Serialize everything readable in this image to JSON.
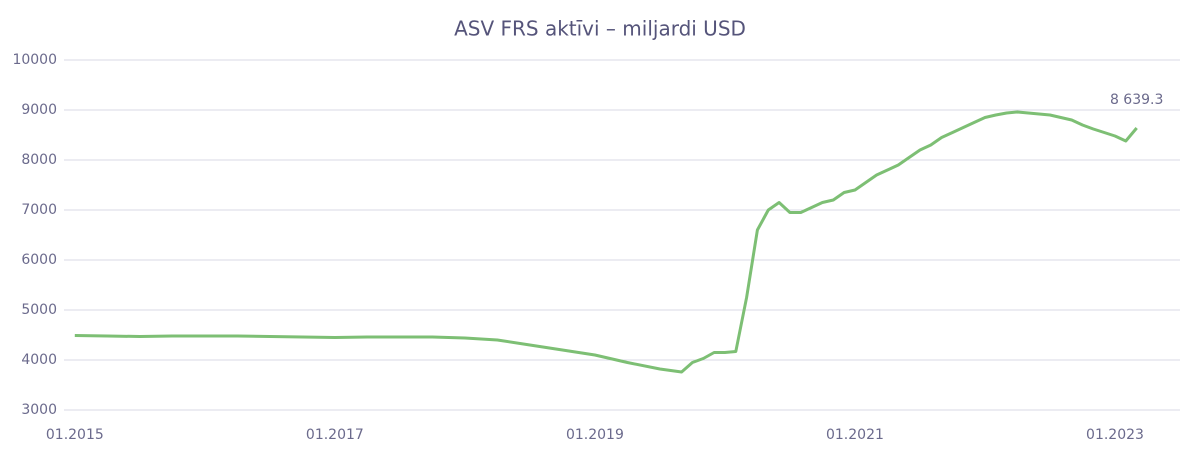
{
  "chart_data": {
    "type": "line",
    "title": "ASV FRS aktīvi – miljardi USD",
    "x": [
      "01.2015",
      "04.2015",
      "07.2015",
      "10.2015",
      "01.2016",
      "04.2016",
      "07.2016",
      "10.2016",
      "01.2017",
      "04.2017",
      "07.2017",
      "10.2017",
      "01.2018",
      "04.2018",
      "07.2018",
      "10.2018",
      "01.2019",
      "04.2019",
      "07.2019",
      "09.2019",
      "10.2019",
      "11.2019",
      "12.2019",
      "01.2020",
      "02.2020",
      "03.2020",
      "04.2020",
      "05.2020",
      "06.2020",
      "07.2020",
      "08.2020",
      "09.2020",
      "10.2020",
      "11.2020",
      "12.2020",
      "01.2021",
      "02.2021",
      "03.2021",
      "04.2021",
      "05.2021",
      "06.2021",
      "07.2021",
      "08.2021",
      "09.2021",
      "10.2021",
      "11.2021",
      "12.2021",
      "01.2022",
      "02.2022",
      "03.2022",
      "04.2022",
      "05.2022",
      "06.2022",
      "07.2022",
      "08.2022",
      "09.2022",
      "10.2022",
      "11.2022",
      "12.2022",
      "01.2023",
      "02.2023",
      "03.2023"
    ],
    "series": [
      {
        "color": "#7dbf74",
        "values": [
          4490,
          4480,
          4470,
          4480,
          4480,
          4480,
          4470,
          4460,
          4450,
          4460,
          4460,
          4460,
          4440,
          4400,
          4300,
          4200,
          4100,
          3950,
          3820,
          3760,
          3950,
          4030,
          4150,
          4150,
          4170,
          5250,
          6600,
          7000,
          7150,
          6950,
          6950,
          7050,
          7150,
          7200,
          7350,
          7400,
          7550,
          7700,
          7800,
          7900,
          8050,
          8200,
          8300,
          8450,
          8550,
          8650,
          8750,
          8850,
          8900,
          8940,
          8960,
          8940,
          8920,
          8900,
          8850,
          8800,
          8700,
          8620,
          8550,
          8480,
          8380,
          8639.3
        ],
        "value_labels": [
          null,
          null,
          null,
          null,
          null,
          null,
          null,
          null,
          null,
          null,
          null,
          null,
          null,
          null,
          null,
          null,
          null,
          null,
          null,
          null,
          null,
          null,
          null,
          null,
          null,
          null,
          null,
          null,
          null,
          null,
          null,
          null,
          null,
          null,
          null,
          null,
          null,
          null,
          null,
          null,
          null,
          null,
          null,
          null,
          null,
          null,
          null,
          null,
          null,
          null,
          null,
          null,
          null,
          null,
          null,
          null,
          null,
          null,
          null,
          null,
          null,
          "8 639.3"
        ]
      }
    ],
    "xlim": [
      "12.2014",
      "07.2023"
    ],
    "xticks": [
      "01.2015",
      "01.2017",
      "01.2019",
      "01.2021",
      "01.2023"
    ],
    "ylim": [
      3000,
      10000
    ],
    "yticks": [
      3000,
      4000,
      5000,
      6000,
      7000,
      8000,
      9000,
      10000
    ],
    "grid": true
  }
}
